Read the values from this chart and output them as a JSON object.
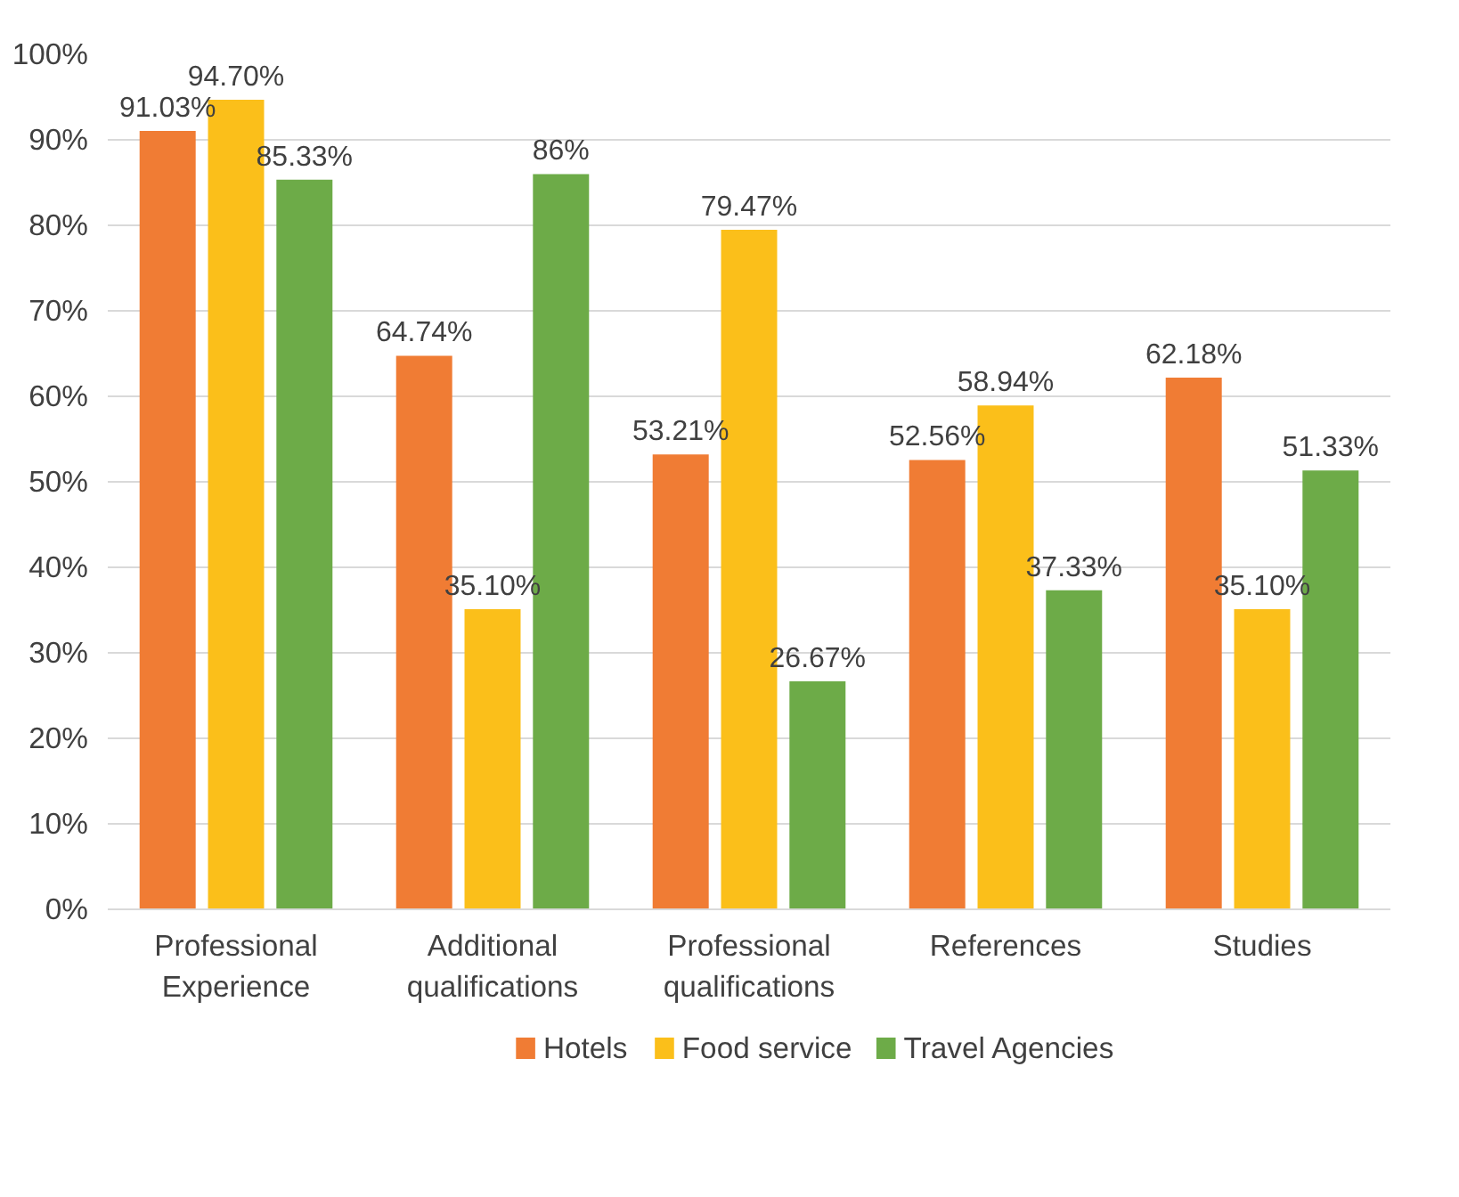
{
  "chart_data": {
    "type": "bar",
    "categories": [
      "Professional Experience",
      "Additional qualifications",
      "Professional qualifications",
      "References",
      "Studies"
    ],
    "series": [
      {
        "name": "Hotels",
        "color": "#f07c34",
        "values": [
          91.03,
          64.74,
          53.21,
          52.56,
          62.18
        ],
        "value_labels": [
          "91.03%",
          "64.74%",
          "53.21%",
          "52.56%",
          "62.18%"
        ]
      },
      {
        "name": "Food service",
        "color": "#fbbf1a",
        "values": [
          94.7,
          35.1,
          79.47,
          58.94,
          35.1
        ],
        "value_labels": [
          "94.70%",
          "35.10%",
          "79.47%",
          "58.94%",
          "35.10%"
        ]
      },
      {
        "name": "Travel Agencies",
        "color": "#6dab48",
        "values": [
          85.33,
          86,
          26.67,
          37.33,
          51.33
        ],
        "value_labels": [
          "85.33%",
          "86%",
          "26.67%",
          "37.33%",
          "51.33%"
        ]
      }
    ],
    "ylim": [
      0,
      100
    ],
    "yticks": [
      {
        "value": 0,
        "label": "0%"
      },
      {
        "value": 10,
        "label": "10%"
      },
      {
        "value": 20,
        "label": "20%"
      },
      {
        "value": 30,
        "label": "30%"
      },
      {
        "value": 40,
        "label": "40%"
      },
      {
        "value": 50,
        "label": "50%"
      },
      {
        "value": 60,
        "label": "60%"
      },
      {
        "value": 70,
        "label": "70%"
      },
      {
        "value": 80,
        "label": "80%"
      },
      {
        "value": 90,
        "label": "90%"
      },
      {
        "value": 100,
        "label": "100%"
      }
    ],
    "grid": "y",
    "legend": "bottom"
  }
}
